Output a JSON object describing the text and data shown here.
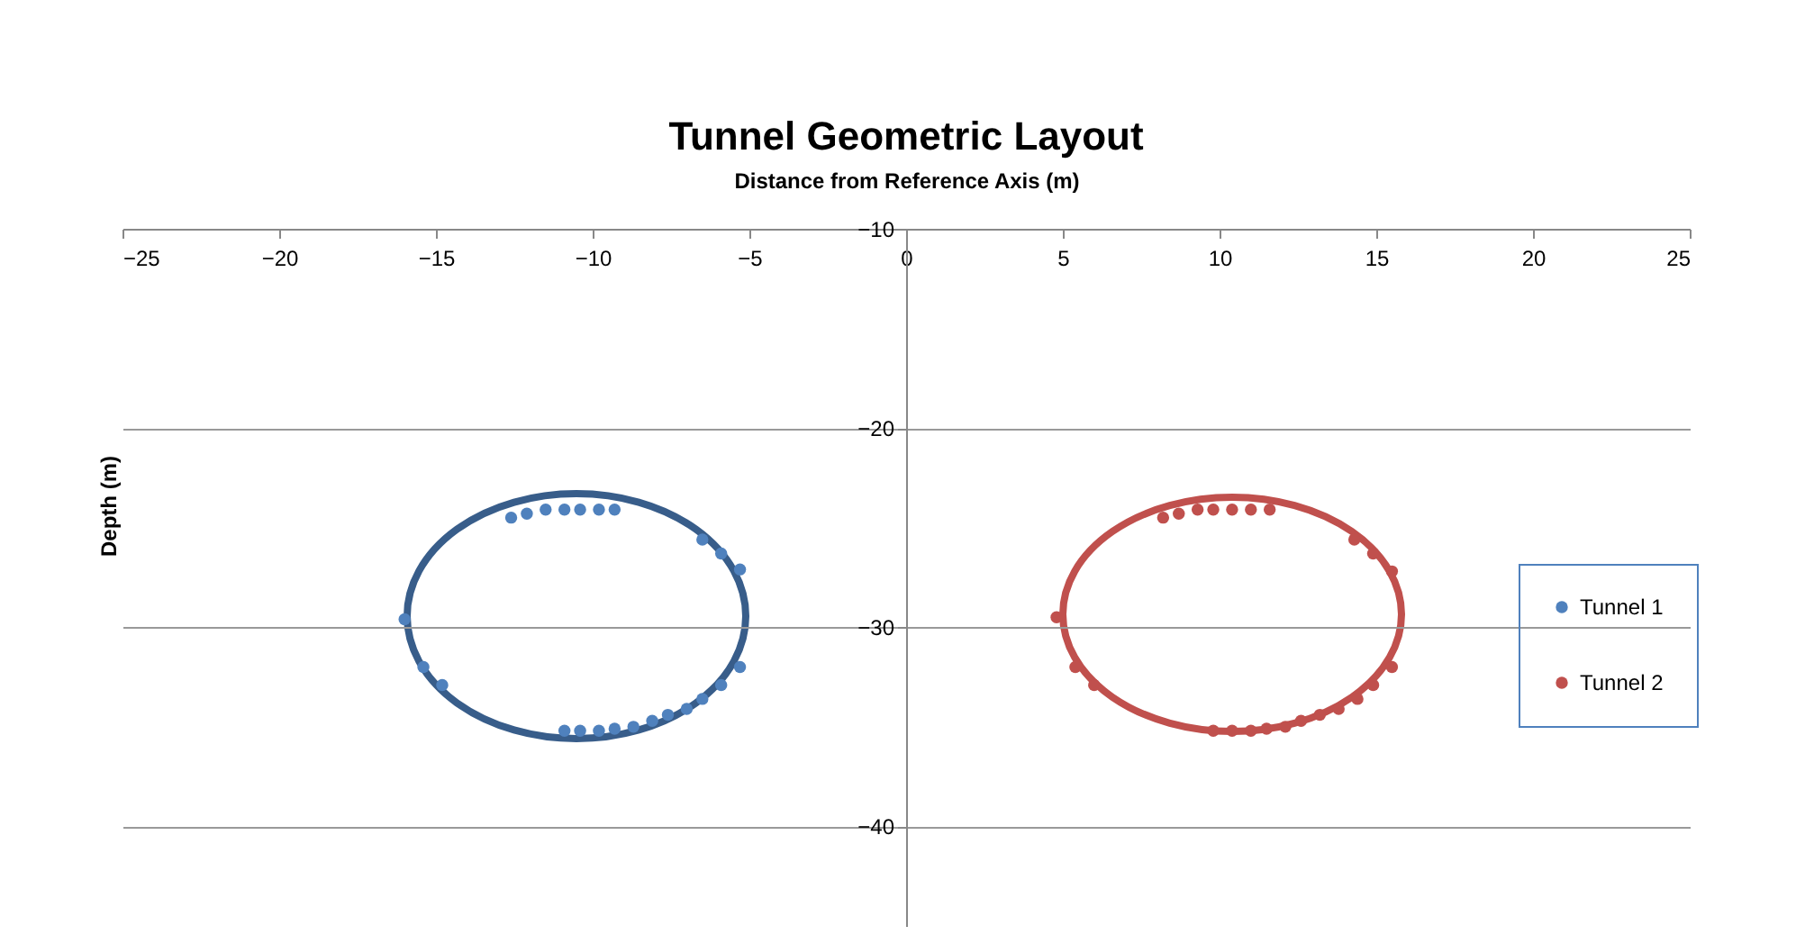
{
  "chart_data": {
    "type": "scatter",
    "title": "Tunnel Geometric Layout",
    "xlabel": "Distance from Reference Axis (m)",
    "ylabel": "Depth (m)",
    "xlim": [
      -25,
      25
    ],
    "xticks": [
      -25,
      -20,
      -15,
      -10,
      -5,
      0,
      5,
      10,
      15,
      20,
      25
    ],
    "ylim": [
      -45,
      -10
    ],
    "yticks": [
      -40,
      -30,
      -20,
      -10
    ],
    "grid": "y",
    "legend": "right",
    "marker": "circle",
    "series": [
      {
        "name": "Tunnel 1",
        "color": "#4f81bd",
        "x": [
          -12.6,
          -12.1,
          -11.5,
          -10.9,
          -10.4,
          -9.8,
          -9.3,
          -6.5,
          -5.9,
          -5.3,
          -16.0,
          -15.4,
          -14.8,
          -5.3,
          -5.9,
          -6.5,
          -7.0,
          -7.6,
          -8.1,
          -8.7,
          -9.3,
          -9.8,
          -10.4,
          -10.9
        ],
        "values": [
          -24.5,
          -24.3,
          -24.1,
          -24.1,
          -24.1,
          -24.1,
          -24.1,
          -25.6,
          -26.3,
          -27.1,
          -29.6,
          -32.0,
          -32.9,
          -32.0,
          -32.9,
          -33.6,
          -34.1,
          -34.4,
          -34.7,
          -35.0,
          -35.1,
          -35.2,
          -35.2,
          -35.2
        ]
      },
      {
        "name": "Tunnel 2",
        "color": "#c0504d",
        "x": [
          8.2,
          8.7,
          9.3,
          9.8,
          10.4,
          11.0,
          11.6,
          14.3,
          14.9,
          15.5,
          4.8,
          5.4,
          6.0,
          15.5,
          14.9,
          14.4,
          13.8,
          13.2,
          12.6,
          12.1,
          11.5,
          11.0,
          10.4,
          9.8
        ],
        "values": [
          -24.5,
          -24.3,
          -24.1,
          -24.1,
          -24.1,
          -24.1,
          -24.1,
          -25.6,
          -26.3,
          -27.2,
          -29.5,
          -32.0,
          -32.9,
          -32.0,
          -32.9,
          -33.6,
          -34.1,
          -34.4,
          -34.7,
          -35.0,
          -35.1,
          -35.2,
          -35.2,
          -35.2
        ]
      }
    ]
  }
}
